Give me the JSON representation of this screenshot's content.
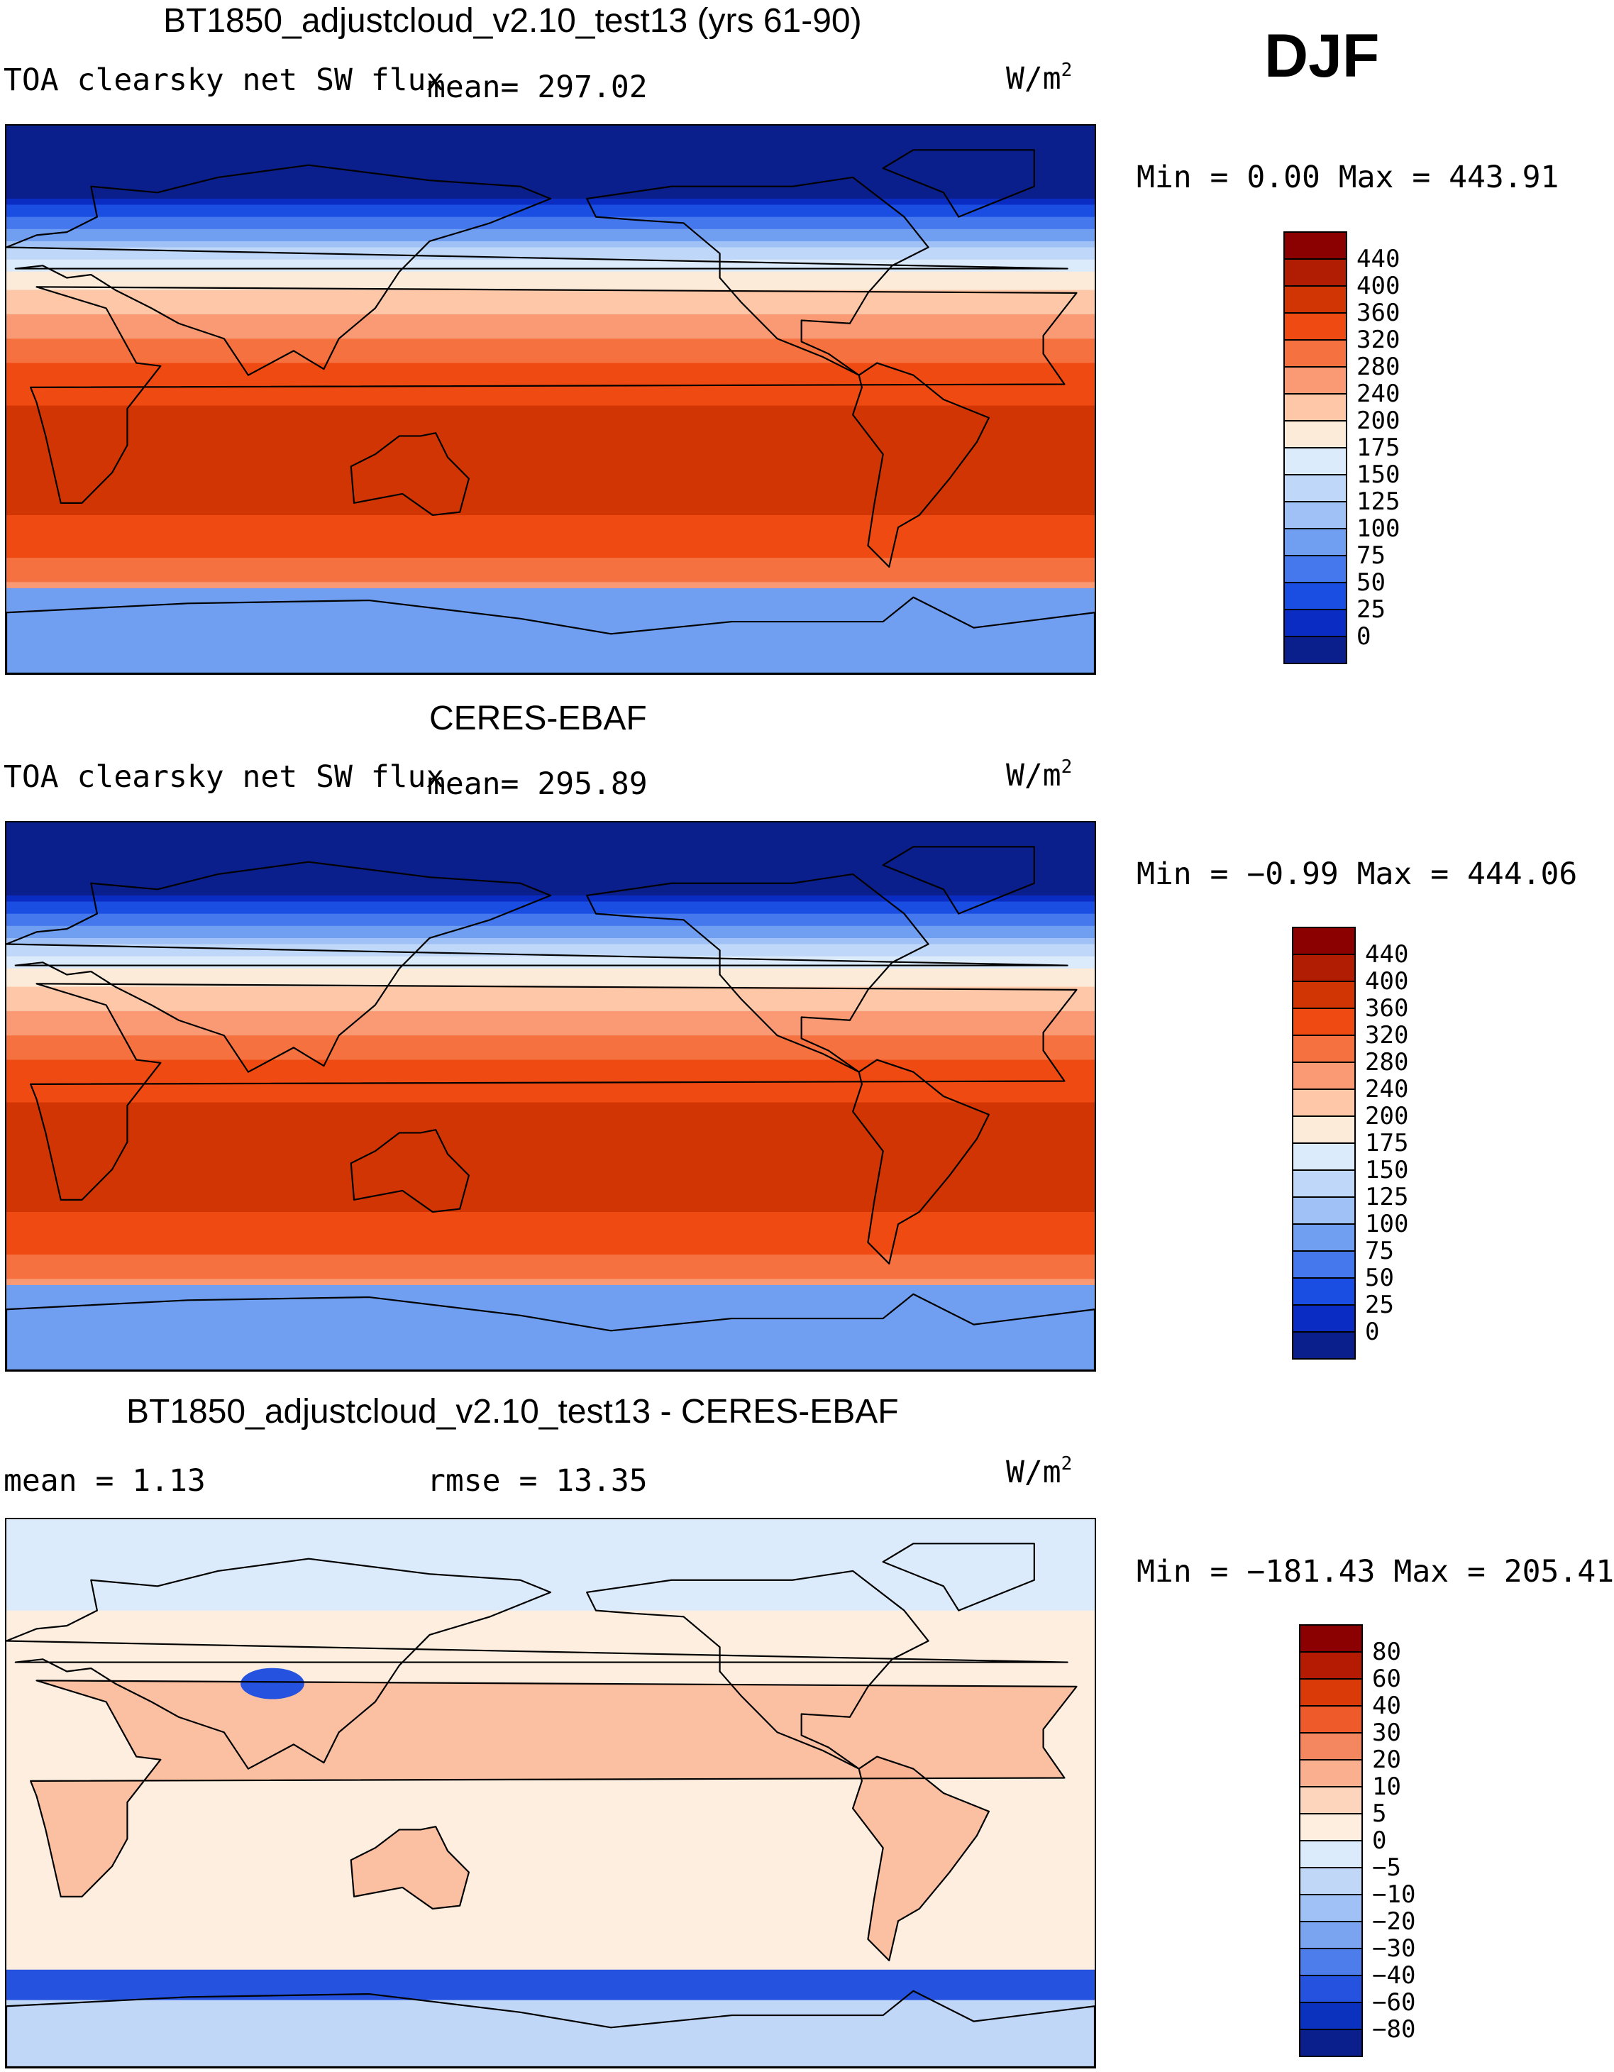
{
  "season": "DJF",
  "panels": [
    {
      "id": "model",
      "title": "BT1850_adjustcloud_v2.10_test13 (yrs 61-90)",
      "variable": "TOA clearsky net SW flux",
      "stat1": "mean= 297.02",
      "stat2": "",
      "units_base": "W/m",
      "units_sup": "2",
      "minmax": "Min =    0.00 Max = 443.91",
      "kind": "abs",
      "colors": [
        "#8B0000",
        "#B01D03",
        "#D23504",
        "#EF4A12",
        "#F5713F",
        "#FA9A74",
        "#FDC7A8",
        "#FDEBDA",
        "#DCEBFB",
        "#BFD7F8",
        "#9FC1F5",
        "#709EF0",
        "#4478EC",
        "#1A4DE2",
        "#0B2CC2",
        "#0A1E8C"
      ],
      "labels": [
        "440",
        "400",
        "360",
        "320",
        "280",
        "240",
        "200",
        "175",
        "150",
        "125",
        "100",
        "75",
        "50",
        "25",
        "0"
      ]
    },
    {
      "id": "obs",
      "title": "CERES-EBAF",
      "variable": "TOA clearsky net SW flux",
      "stat1": "mean= 295.89",
      "stat2": "",
      "units_base": "W/m",
      "units_sup": "2",
      "minmax": "Min =  −0.99 Max = 444.06",
      "kind": "abs",
      "colors": [
        "#8B0000",
        "#B01D03",
        "#D23504",
        "#EF4A12",
        "#F5713F",
        "#FA9A74",
        "#FDC7A8",
        "#FDEBDA",
        "#DCEBFB",
        "#BFD7F8",
        "#9FC1F5",
        "#709EF0",
        "#4478EC",
        "#1A4DE2",
        "#0B2CC2",
        "#0A1E8C"
      ],
      "labels": [
        "440",
        "400",
        "360",
        "320",
        "280",
        "240",
        "200",
        "175",
        "150",
        "125",
        "100",
        "75",
        "50",
        "25",
        "0"
      ]
    },
    {
      "id": "diff",
      "title": "BT1850_adjustcloud_v2.10_test13 - CERES-EBAF",
      "variable": "mean =    1.13",
      "stat1": "rmse =   13.35",
      "stat2": "",
      "units_base": "W/m",
      "units_sup": "2",
      "minmax": "Min = −181.43 Max = 205.41",
      "kind": "diff",
      "colors": [
        "#8B0000",
        "#B51A02",
        "#DA3A08",
        "#EF5A2A",
        "#F58760",
        "#FAAF8E",
        "#FDD4BC",
        "#FDEEDF",
        "#DCEBFB",
        "#C0D7F8",
        "#9FC1F5",
        "#7AA3F0",
        "#4C7DEA",
        "#2552DE",
        "#0B32BE",
        "#0A1E8C"
      ],
      "labels": [
        "80",
        "60",
        "40",
        "30",
        "20",
        "10",
        "5",
        "0",
        "−5",
        "−10",
        "−20",
        "−30",
        "−40",
        "−60",
        "−80"
      ]
    }
  ],
  "chart_data": {
    "type": "heatmap",
    "projection": "cylindrical equidistant, centered 180",
    "season": "DJF",
    "maps": [
      {
        "name": "BT1850_adjustcloud_v2.10_test13 (yrs 61-90)",
        "variable": "TOA clearsky net SW flux",
        "units": "W/m2",
        "mean": 297.02,
        "min": 0.0,
        "max": 443.91,
        "levels": [
          0,
          25,
          50,
          75,
          100,
          125,
          150,
          175,
          200,
          240,
          280,
          320,
          360,
          400,
          440
        ]
      },
      {
        "name": "CERES-EBAF",
        "variable": "TOA clearsky net SW flux",
        "units": "W/m2",
        "mean": 295.89,
        "min": -0.99,
        "max": 444.06,
        "levels": [
          0,
          25,
          50,
          75,
          100,
          125,
          150,
          175,
          200,
          240,
          280,
          320,
          360,
          400,
          440
        ]
      },
      {
        "name": "BT1850_adjustcloud_v2.10_test13 - CERES-EBAF",
        "units": "W/m2",
        "mean": 1.13,
        "rmse": 13.35,
        "min": -181.43,
        "max": 205.41,
        "levels": [
          -80,
          -60,
          -40,
          -30,
          -20,
          -10,
          -5,
          0,
          5,
          10,
          20,
          30,
          40,
          60,
          80
        ]
      }
    ]
  }
}
